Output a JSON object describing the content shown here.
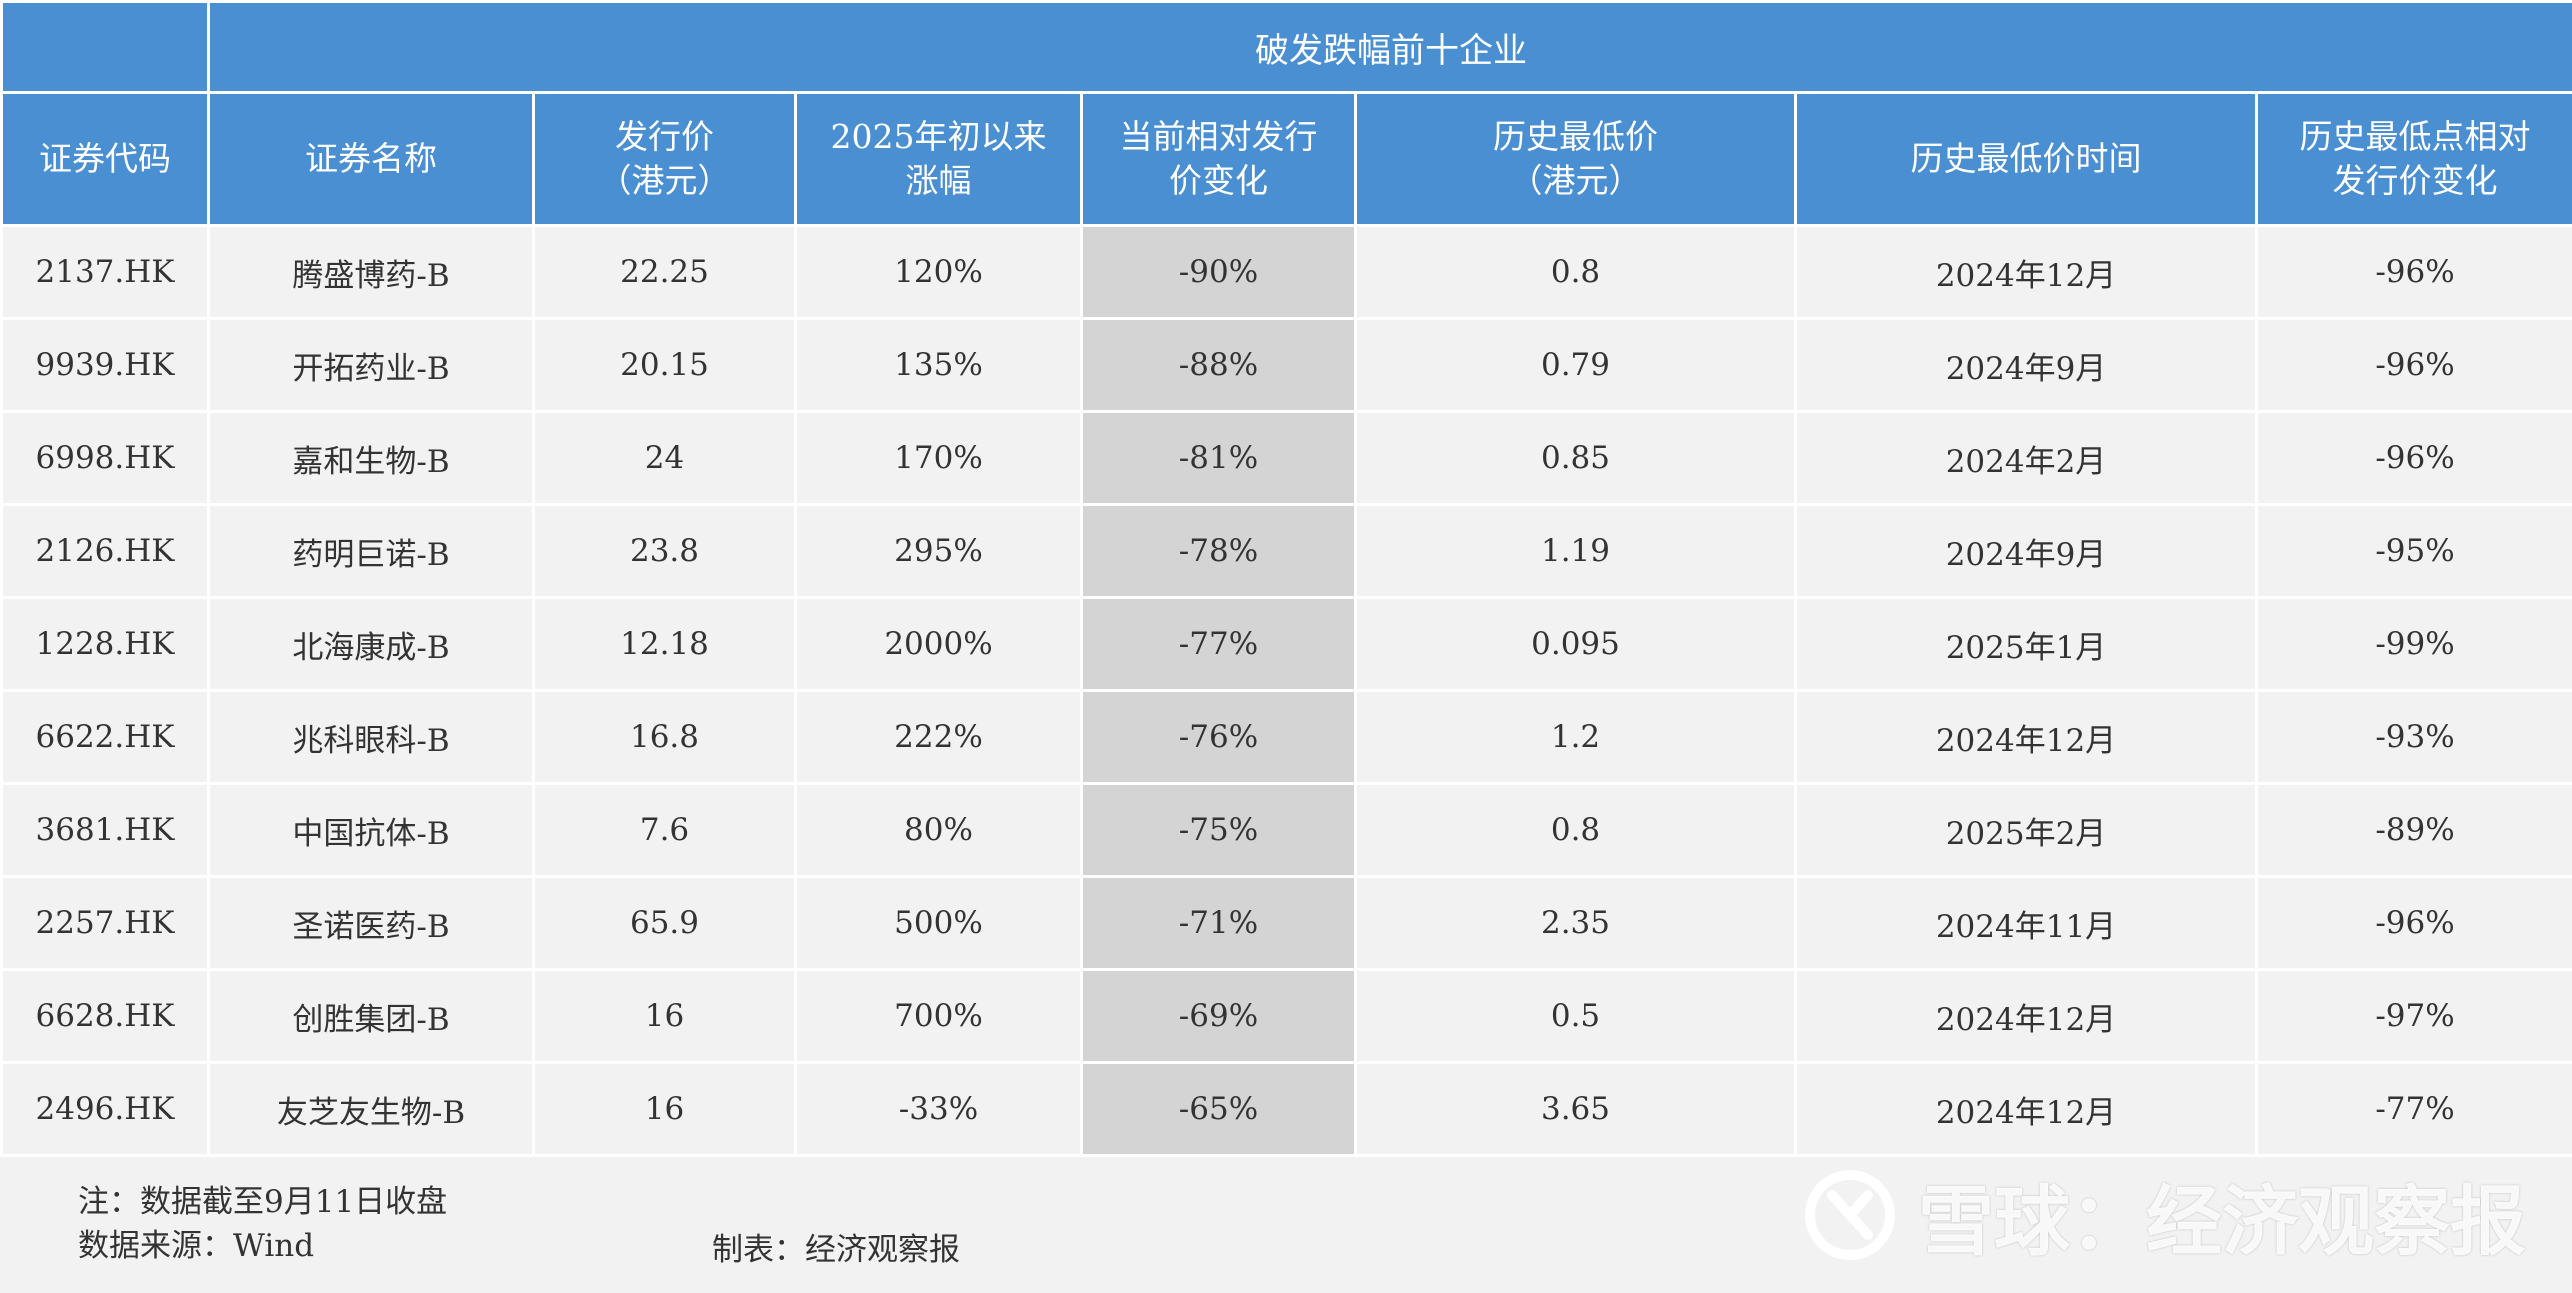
{
  "table": {
    "title": "破发跌幅前十企业",
    "headers": [
      "证券代码",
      "证券名称",
      "发行价\n（港元）",
      "2025年初以来\n涨幅",
      "当前相对发行\n价变化",
      "历史最低价\n（港元）",
      "历史最低价时间",
      "历史最低点相对\n发行价变化"
    ],
    "rows": [
      [
        "2137.HK",
        "腾盛博药-B",
        "22.25",
        "120%",
        "-90%",
        "0.8",
        "2024年12月",
        "-96%"
      ],
      [
        "9939.HK",
        "开拓药业-B",
        "20.15",
        "135%",
        "-88%",
        "0.79",
        "2024年9月",
        "-96%"
      ],
      [
        "6998.HK",
        "嘉和生物-B",
        "24",
        "170%",
        "-81%",
        "0.85",
        "2024年2月",
        "-96%"
      ],
      [
        "2126.HK",
        "药明巨诺-B",
        "23.8",
        "295%",
        "-78%",
        "1.19",
        "2024年9月",
        "-95%"
      ],
      [
        "1228.HK",
        "北海康成-B",
        "12.18",
        "2000%",
        "-77%",
        "0.095",
        "2025年1月",
        "-99%"
      ],
      [
        "6622.HK",
        "兆科眼科-B",
        "16.8",
        "222%",
        "-76%",
        "1.2",
        "2024年12月",
        "-93%"
      ],
      [
        "3681.HK",
        "中国抗体-B",
        "7.6",
        "80%",
        "-75%",
        "0.8",
        "2025年2月",
        "-89%"
      ],
      [
        "2257.HK",
        "圣诺医药-B",
        "65.9",
        "500%",
        "-71%",
        "2.35",
        "2024年11月",
        "-96%"
      ],
      [
        "6628.HK",
        "创胜集团-B",
        "16",
        "700%",
        "-69%",
        "0.5",
        "2024年12月",
        "-97%"
      ],
      [
        "2496.HK",
        "友芝友生物-B",
        "16",
        "-33%",
        "-65%",
        "3.65",
        "2024年12月",
        "-77%"
      ]
    ],
    "highlight_column_index": 4
  },
  "notes": {
    "note": "注：数据截至9月11日收盘",
    "source": "数据来源：Wind",
    "maker": "制表：经济观察报"
  },
  "watermark": {
    "text": "雪球：经济观察报",
    "icon": "snowball-logo-icon"
  },
  "colors": {
    "header_bg": "#4a8fd2",
    "highlight_bg": "#d4d4d4",
    "body_bg": "#f2f2f2"
  }
}
